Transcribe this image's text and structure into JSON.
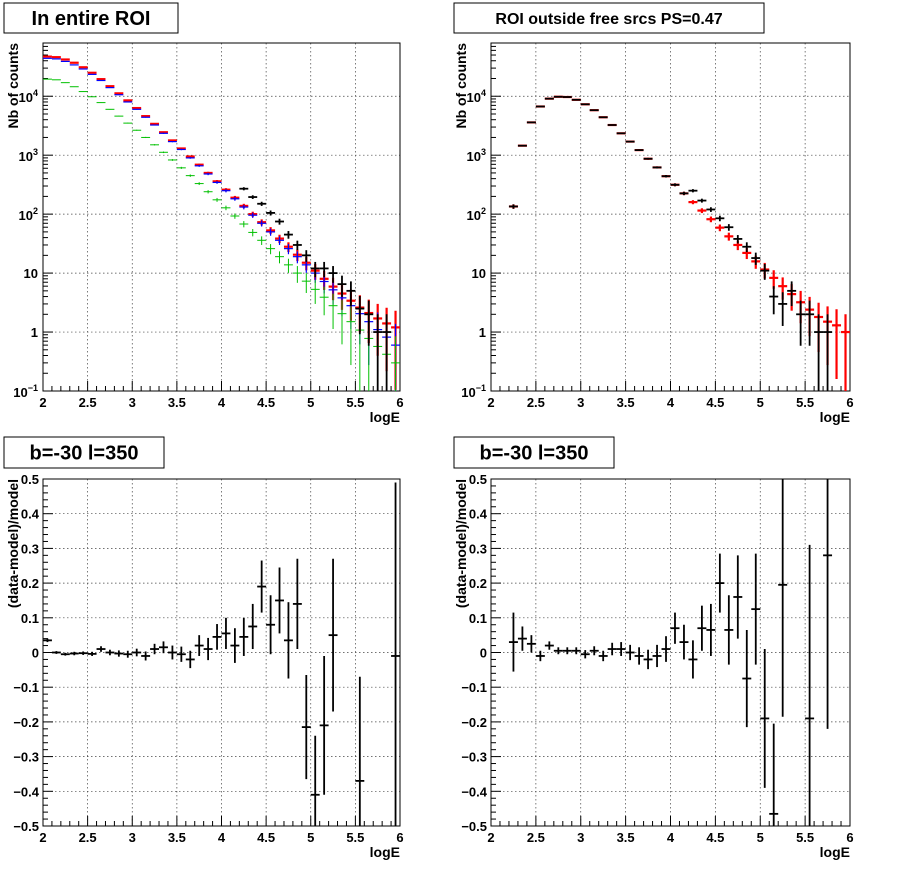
{
  "chart_data": [
    {
      "type": "scatter",
      "title": "In entire ROI",
      "xlabel": "logE",
      "ylabel": "Nb of counts",
      "xlim": [
        2,
        6
      ],
      "ylim": [
        0.1,
        80000
      ],
      "yscale": "log",
      "grid": true,
      "x_ticks": [
        "2",
        "2.5",
        "3",
        "3.5",
        "4",
        "4.5",
        "5",
        "5.5",
        "6"
      ],
      "y_ticks": [
        {
          "value": 0.1,
          "base": "10",
          "exp": "−1"
        },
        {
          "value": 1,
          "label": "1"
        },
        {
          "value": 10,
          "label": "10"
        },
        {
          "value": 100,
          "base": "10",
          "exp": "2"
        },
        {
          "value": 1000,
          "base": "10",
          "exp": "3"
        },
        {
          "value": 10000,
          "base": "10",
          "exp": "4"
        }
      ],
      "x": [
        2.05,
        2.15,
        2.25,
        2.35,
        2.45,
        2.55,
        2.65,
        2.75,
        2.85,
        2.95,
        3.05,
        3.15,
        3.25,
        3.35,
        3.45,
        3.55,
        3.65,
        3.75,
        3.85,
        3.95,
        4.05,
        4.15,
        4.25,
        4.35,
        4.45,
        4.55,
        4.65,
        4.75,
        4.85,
        4.95,
        5.05,
        5.15,
        5.25,
        5.35,
        5.45,
        5.55,
        5.65,
        5.75,
        5.85,
        5.95
      ],
      "series": [
        {
          "color": "#ff0000",
          "stroke": 2.2,
          "values": [
            47000,
            46000,
            42000,
            37000,
            31000,
            25000,
            19500,
            14800,
            11200,
            8500,
            6300,
            4600,
            3400,
            2450,
            1780,
            1300,
            950,
            690,
            500,
            360,
            260,
            190,
            138,
            100,
            73,
            53,
            38.5,
            28,
            20.5,
            15,
            11,
            8,
            5.9,
            4.5,
            3.4,
            2.6,
            2.1,
            1.7,
            1.4,
            1.2
          ]
        },
        {
          "color": "#0000ff",
          "stroke": 1.2,
          "values": [
            44000,
            43000,
            39000,
            34000,
            29000,
            23500,
            18500,
            14000,
            10600,
            8000,
            6000,
            4400,
            3250,
            2350,
            1700,
            1250,
            900,
            660,
            480,
            345,
            250,
            182,
            132,
            96,
            70,
            50,
            36,
            26,
            19,
            13.8,
            10,
            7.2,
            5.2,
            3.8,
            2.8,
            2.05,
            1.5,
            1.1,
            0.82,
            0.6
          ]
        },
        {
          "color": "#00c000",
          "stroke": 1,
          "values": [
            19500,
            19000,
            17000,
            14500,
            12000,
            9800,
            7800,
            6000,
            4600,
            3500,
            2650,
            2000,
            1500,
            1120,
            830,
            610,
            450,
            330,
            240,
            175,
            128,
            93,
            68,
            49,
            36,
            26,
            19,
            13.8,
            10,
            7.3,
            5.3,
            3.9,
            2.8,
            2.05,
            1.5,
            1.08,
            0.78,
            0.57,
            0.42,
            0.3
          ]
        },
        {
          "color": "#000000",
          "stroke": 1.8,
          "values": [
            null,
            null,
            null,
            null,
            null,
            null,
            null,
            null,
            null,
            null,
            null,
            null,
            null,
            null,
            null,
            null,
            null,
            null,
            null,
            null,
            null,
            null,
            270,
            195,
            150,
            105,
            75,
            45,
            30,
            20,
            12,
            12,
            10,
            6.5,
            5,
            2.5,
            2,
            1,
            1,
            null
          ]
        }
      ]
    },
    {
      "type": "scatter",
      "title": "ROI outside free srcs PS=0.47",
      "xlabel": "logE",
      "ylabel": "Nb of counts",
      "xlim": [
        2,
        6
      ],
      "ylim": [
        0.1,
        80000
      ],
      "yscale": "log",
      "grid": true,
      "x_ticks": [
        "2",
        "2.5",
        "3",
        "3.5",
        "4",
        "4.5",
        "5",
        "5.5",
        "6"
      ],
      "y_ticks": [
        {
          "value": 0.1,
          "base": "10",
          "exp": "−1"
        },
        {
          "value": 1,
          "label": "1"
        },
        {
          "value": 10,
          "label": "10"
        },
        {
          "value": 100,
          "base": "10",
          "exp": "2"
        },
        {
          "value": 1000,
          "base": "10",
          "exp": "3"
        },
        {
          "value": 10000,
          "base": "10",
          "exp": "4"
        }
      ],
      "x": [
        2.05,
        2.15,
        2.25,
        2.35,
        2.45,
        2.55,
        2.65,
        2.75,
        2.85,
        2.95,
        3.05,
        3.15,
        3.25,
        3.35,
        3.45,
        3.55,
        3.65,
        3.75,
        3.85,
        3.95,
        4.05,
        4.15,
        4.25,
        4.35,
        4.45,
        4.55,
        4.65,
        4.75,
        4.85,
        4.95,
        5.05,
        5.15,
        5.25,
        5.35,
        5.45,
        5.55,
        5.65,
        5.75,
        5.85,
        5.95
      ],
      "series": [
        {
          "color": "#ff0000",
          "stroke": 2.2,
          "values": [
            null,
            null,
            135,
            1450,
            3600,
            6700,
            9100,
            9800,
            9700,
            8700,
            7300,
            5800,
            4400,
            3250,
            2350,
            1700,
            1220,
            870,
            620,
            440,
            315,
            225,
            160,
            115,
            82,
            59,
            42,
            30,
            22,
            15.8,
            11.5,
            8.3,
            6,
            4.4,
            3.2,
            2.4,
            1.8,
            1.5,
            1.3,
            1.0
          ]
        },
        {
          "color": "#000000",
          "stroke": 1.8,
          "values": [
            null,
            null,
            135,
            1450,
            3600,
            6700,
            9100,
            9800,
            9700,
            8700,
            7300,
            5800,
            4400,
            3250,
            2350,
            1700,
            1220,
            870,
            620,
            440,
            315,
            225,
            250,
            170,
            120,
            85,
            60,
            38,
            28,
            18,
            11,
            4,
            3,
            5,
            2,
            2,
            1,
            1,
            null,
            null
          ]
        }
      ]
    },
    {
      "type": "scatter",
      "title": "b=-30 l=350",
      "xlabel": "logE",
      "ylabel": "(data-model)/model",
      "xlim": [
        2,
        6
      ],
      "ylim": [
        -0.5,
        0.5
      ],
      "grid": true,
      "x_ticks": [
        "2",
        "2.5",
        "3",
        "3.5",
        "4",
        "4.5",
        "5",
        "5.5",
        "6"
      ],
      "y_ticks": [
        "−0.5",
        "−0.4",
        "−0.3",
        "−0.2",
        "−0.1",
        "0",
        "0.1",
        "0.2",
        "0.3",
        "0.4",
        "0.5"
      ],
      "x": [
        2.05,
        2.15,
        2.25,
        2.35,
        2.45,
        2.55,
        2.65,
        2.75,
        2.85,
        2.95,
        3.05,
        3.15,
        3.25,
        3.35,
        3.45,
        3.55,
        3.65,
        3.75,
        3.85,
        3.95,
        4.05,
        4.15,
        4.25,
        4.35,
        4.45,
        4.55,
        4.65,
        4.75,
        4.85,
        4.95,
        5.05,
        5.15,
        5.25,
        5.35,
        5.45,
        5.55,
        5.65,
        5.75,
        5.85,
        5.95
      ],
      "series": [
        {
          "color": "#000000",
          "stroke": 1.8,
          "values": [
            0.035,
            0.0,
            -0.005,
            -0.003,
            -0.002,
            -0.004,
            0.01,
            0.0,
            -0.003,
            -0.005,
            0.0,
            -0.01,
            0.01,
            0.015,
            0.0,
            -0.005,
            -0.02,
            0.02,
            0.01,
            0.045,
            0.055,
            0.02,
            0.045,
            0.075,
            0.19,
            0.08,
            0.15,
            0.035,
            0.14,
            -0.215,
            -0.41,
            -0.21,
            0.05,
            null,
            null,
            -0.37,
            null,
            null,
            null,
            -0.01
          ],
          "errors": [
            0.005,
            0.004,
            0.004,
            0.005,
            0.005,
            0.006,
            0.008,
            0.008,
            0.009,
            0.01,
            0.011,
            0.013,
            0.015,
            0.017,
            0.02,
            0.022,
            0.025,
            0.03,
            0.032,
            0.037,
            0.045,
            0.05,
            0.055,
            0.065,
            0.075,
            0.085,
            0.095,
            0.11,
            0.13,
            0.15,
            0.17,
            0.2,
            0.22,
            0.25,
            0.28,
            0.3,
            0.35,
            0.4,
            0.45,
            0.5
          ]
        }
      ]
    },
    {
      "type": "scatter",
      "title": "b=-30 l=350",
      "xlabel": "logE",
      "ylabel": "(data-model)/model",
      "xlim": [
        2,
        6
      ],
      "ylim": [
        -0.5,
        0.5
      ],
      "grid": true,
      "x_ticks": [
        "2",
        "2.5",
        "3",
        "3.5",
        "4",
        "4.5",
        "5",
        "5.5",
        "6"
      ],
      "y_ticks": [
        "−0.5",
        "−0.4",
        "−0.3",
        "−0.2",
        "−0.1",
        "0",
        "0.1",
        "0.2",
        "0.3",
        "0.4",
        "0.5"
      ],
      "x": [
        2.05,
        2.15,
        2.25,
        2.35,
        2.45,
        2.55,
        2.65,
        2.75,
        2.85,
        2.95,
        3.05,
        3.15,
        3.25,
        3.35,
        3.45,
        3.55,
        3.65,
        3.75,
        3.85,
        3.95,
        4.05,
        4.15,
        4.25,
        4.35,
        4.45,
        4.55,
        4.65,
        4.75,
        4.85,
        4.95,
        5.05,
        5.15,
        5.25,
        5.35,
        5.45,
        5.55,
        5.65,
        5.75,
        5.85,
        5.95
      ],
      "series": [
        {
          "color": "#000000",
          "stroke": 1.8,
          "values": [
            null,
            null,
            0.03,
            0.04,
            0.025,
            -0.01,
            0.02,
            0.005,
            0.005,
            0.005,
            -0.005,
            0.005,
            -0.01,
            0.01,
            0.01,
            0.0,
            -0.01,
            -0.02,
            -0.01,
            0.01,
            0.07,
            0.03,
            -0.02,
            0.07,
            0.065,
            0.2,
            0.065,
            0.16,
            -0.075,
            0.125,
            -0.19,
            -0.465,
            0.195,
            null,
            null,
            -0.19,
            null,
            0.28,
            null,
            null
          ],
          "errors": [
            null,
            null,
            0.085,
            0.035,
            0.025,
            0.015,
            0.012,
            0.01,
            0.01,
            0.01,
            0.012,
            0.013,
            0.015,
            0.018,
            0.02,
            0.022,
            0.025,
            0.028,
            0.032,
            0.037,
            0.045,
            0.05,
            0.055,
            0.065,
            0.075,
            0.085,
            0.1,
            0.12,
            0.14,
            0.16,
            0.2,
            0.26,
            0.38,
            0.45,
            0.5,
            0.5,
            0.5,
            0.5,
            0.5,
            0.5
          ]
        }
      ]
    }
  ]
}
